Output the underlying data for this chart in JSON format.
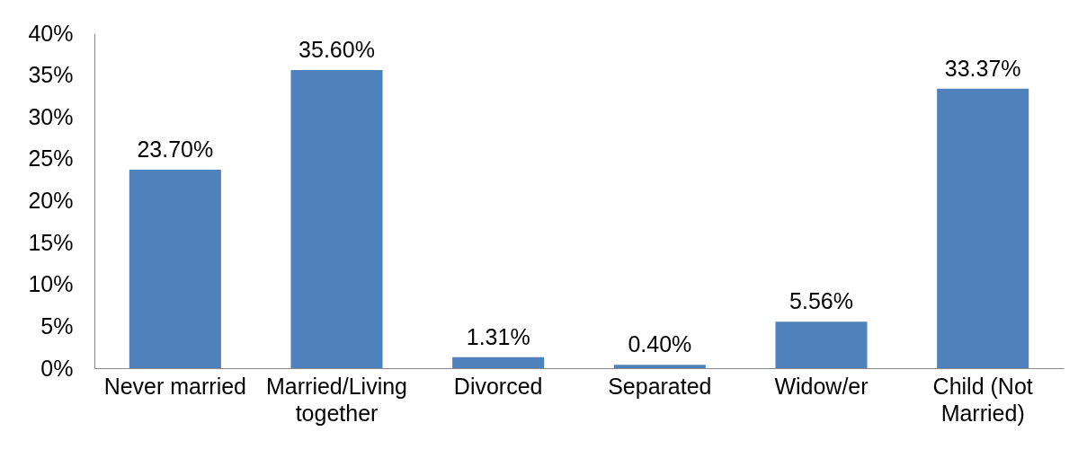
{
  "chart_data": {
    "type": "bar",
    "categories": [
      "Never married",
      "Married/Living together",
      "Divorced",
      "Separated",
      "Widow/er",
      "Child (Not Married)"
    ],
    "values": [
      23.7,
      35.6,
      1.31,
      0.4,
      5.56,
      33.37
    ],
    "value_labels": [
      "23.70%",
      "35.60%",
      "1.31%",
      "0.40%",
      "5.56%",
      "33.37%"
    ],
    "color": "#4f81bd",
    "ylim": [
      0,
      40
    ],
    "yticks": [
      {
        "value": 0,
        "label": "0%"
      },
      {
        "value": 5,
        "label": "5%"
      },
      {
        "value": 10,
        "label": "10%"
      },
      {
        "value": 15,
        "label": "15%"
      },
      {
        "value": 20,
        "label": "20%"
      },
      {
        "value": 25,
        "label": "25%"
      },
      {
        "value": 30,
        "label": "30%"
      },
      {
        "value": 35,
        "label": "35%"
      },
      {
        "value": 40,
        "label": "40%"
      }
    ],
    "grid": false
  }
}
